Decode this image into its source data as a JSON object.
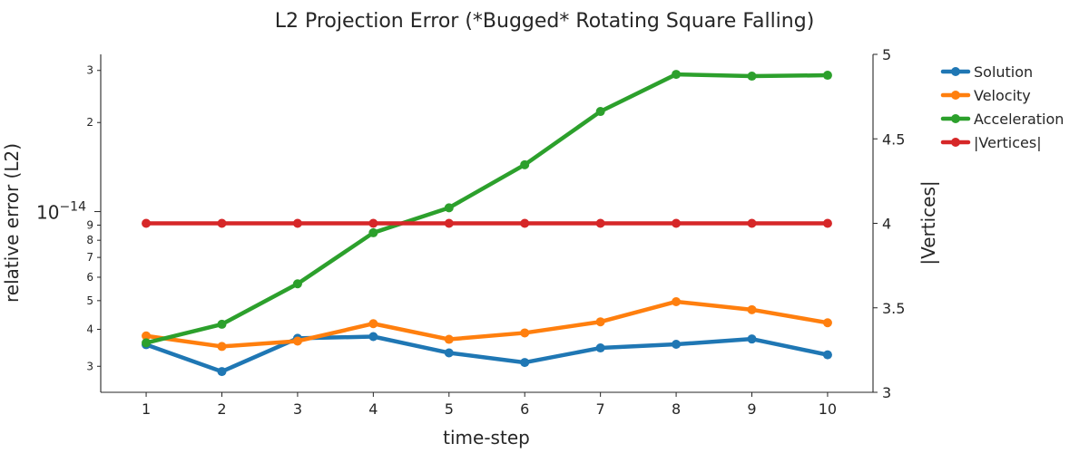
{
  "chart_data": {
    "type": "line",
    "title": "L2 Projection Error (*Bugged* Rotating Square Falling)",
    "xlabel": "time-step",
    "ylabel": "relative error (L2)",
    "y2label": "|Vertices|",
    "x": [
      1,
      2,
      3,
      4,
      5,
      6,
      7,
      8,
      9,
      10
    ],
    "xlim": [
      0.4,
      10.6
    ],
    "ylim": [
      2.45e-15,
      3.4e-14
    ],
    "yscale": "log",
    "y2lim": [
      3,
      5
    ],
    "y2ticks": [
      "3",
      "3.5",
      "4",
      "4.5",
      "5"
    ],
    "ymajor_label": "10",
    "ymajor_exponent": "−14",
    "yminor_labels": [
      "3",
      "4",
      "5",
      "6",
      "7",
      "8",
      "9",
      "2",
      "3"
    ],
    "grid": false,
    "legend": "outside-right-top",
    "series": [
      {
        "name": "Solution",
        "axis": "left",
        "color": "#1f77b4",
        "values": [
          3.55e-15,
          2.88e-15,
          3.73e-15,
          3.78e-15,
          3.33e-15,
          3.09e-15,
          3.46e-15,
          3.56e-15,
          3.71e-15,
          3.28e-15
        ]
      },
      {
        "name": "Velocity",
        "axis": "left",
        "color": "#ff7f0e",
        "values": [
          3.8e-15,
          3.5e-15,
          3.65e-15,
          4.18e-15,
          3.7e-15,
          3.89e-15,
          4.24e-15,
          4.96e-15,
          4.66e-15,
          4.21e-15
        ]
      },
      {
        "name": "Acceleration",
        "axis": "left",
        "color": "#2ca02c",
        "values": [
          3.6e-15,
          4.16e-15,
          5.7e-15,
          8.48e-15,
          1.03e-14,
          1.44e-14,
          2.18e-14,
          2.91e-14,
          2.87e-14,
          2.89e-14
        ]
      },
      {
        "name": "|Vertices|",
        "axis": "right",
        "color": "#d62728",
        "values": [
          4,
          4,
          4,
          4,
          4,
          4,
          4,
          4,
          4,
          4
        ]
      }
    ]
  }
}
